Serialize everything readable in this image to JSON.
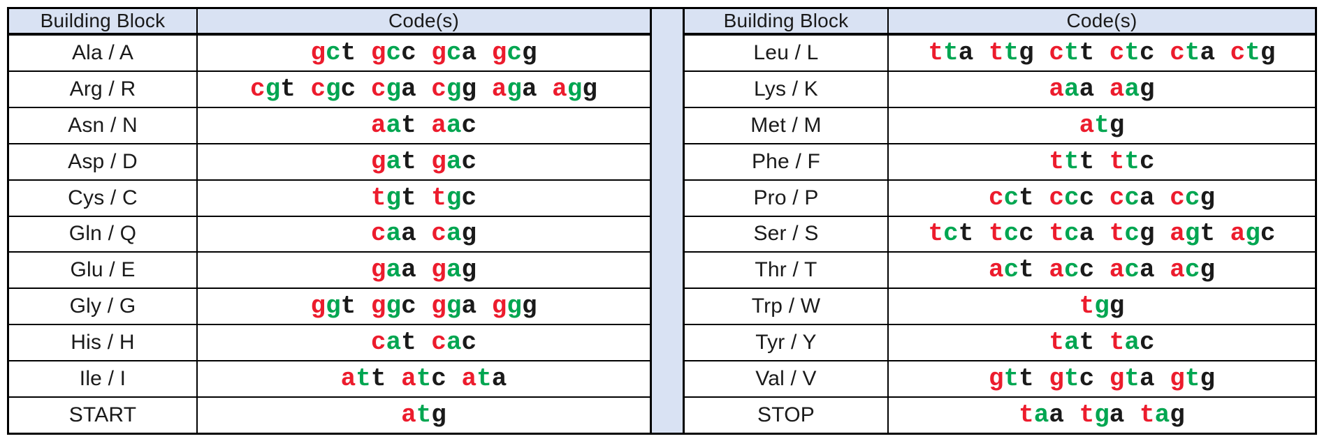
{
  "colors": {
    "header_bg": "#D9E2F3",
    "border": "#000000",
    "text": "#1A1A1A",
    "codon_letter1": "#EC1C2D",
    "codon_letter2": "#00A651",
    "codon_letter3": "#1A1A1A"
  },
  "tables": [
    {
      "id": "left",
      "headers": [
        "Building Block",
        "Code(s)"
      ],
      "rows": [
        {
          "label": "Ala / A",
          "codons": [
            "gct",
            "gcc",
            "gca",
            "gcg"
          ]
        },
        {
          "label": "Arg / R",
          "codons": [
            "cgt",
            "cgc",
            "cga",
            "cgg",
            "aga",
            "agg"
          ]
        },
        {
          "label": "Asn / N",
          "codons": [
            "aat",
            "aac"
          ]
        },
        {
          "label": "Asp / D",
          "codons": [
            "gat",
            "gac"
          ]
        },
        {
          "label": "Cys / C",
          "codons": [
            "tgt",
            "tgc"
          ]
        },
        {
          "label": "Gln / Q",
          "codons": [
            "caa",
            "cag"
          ]
        },
        {
          "label": "Glu / E",
          "codons": [
            "gaa",
            "gag"
          ]
        },
        {
          "label": "Gly / G",
          "codons": [
            "ggt",
            "ggc",
            "gga",
            "ggg"
          ]
        },
        {
          "label": "His / H",
          "codons": [
            "cat",
            "cac"
          ]
        },
        {
          "label": "Ile / I",
          "codons": [
            "att",
            "atc",
            "ata"
          ]
        },
        {
          "label": "START",
          "codons": [
            "atg"
          ]
        }
      ]
    },
    {
      "id": "right",
      "headers": [
        "Building Block",
        "Code(s)"
      ],
      "rows": [
        {
          "label": "Leu / L",
          "codons": [
            "tta",
            "ttg",
            "ctt",
            "ctc",
            "cta",
            "ctg"
          ]
        },
        {
          "label": "Lys / K",
          "codons": [
            "aaa",
            "aag"
          ]
        },
        {
          "label": "Met / M",
          "codons": [
            "atg"
          ]
        },
        {
          "label": "Phe / F",
          "codons": [
            "ttt",
            "ttc"
          ]
        },
        {
          "label": "Pro / P",
          "codons": [
            "cct",
            "ccc",
            "cca",
            "ccg"
          ]
        },
        {
          "label": "Ser / S",
          "codons": [
            "tct",
            "tcc",
            "tca",
            "tcg",
            "agt",
            "agc"
          ]
        },
        {
          "label": "Thr / T",
          "codons": [
            "act",
            "acc",
            "aca",
            "acg"
          ]
        },
        {
          "label": "Trp / W",
          "codons": [
            "tgg"
          ]
        },
        {
          "label": "Tyr / Y",
          "codons": [
            "tat",
            "tac"
          ]
        },
        {
          "label": "Val / V",
          "codons": [
            "gtt",
            "gtc",
            "gta",
            "gtg"
          ]
        },
        {
          "label": "STOP",
          "codons": [
            "taa",
            "tga",
            "tag"
          ]
        }
      ]
    }
  ]
}
